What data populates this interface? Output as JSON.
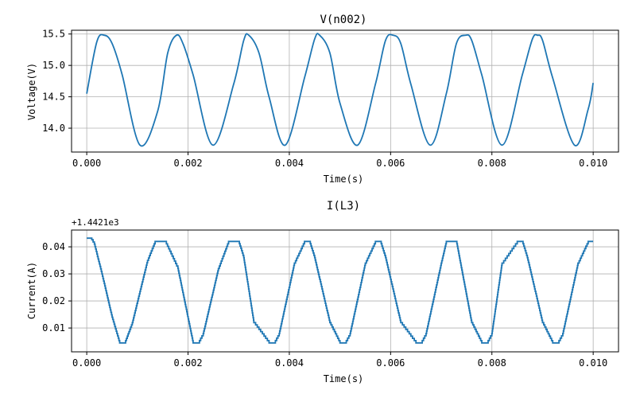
{
  "chart_data": [
    {
      "type": "line",
      "title": "V(n002)",
      "xlabel": "Time(s)",
      "ylabel": "Voltage(V)",
      "xlim": [
        -0.0003,
        0.0105
      ],
      "ylim": [
        13.62,
        15.56
      ],
      "x_ticks": [
        0.0,
        0.002,
        0.004,
        0.006,
        0.008,
        0.01
      ],
      "x_tick_labels": [
        "0.000",
        "0.002",
        "0.004",
        "0.006",
        "0.008",
        "0.010"
      ],
      "y_ticks": [
        14.0,
        14.5,
        15.0,
        15.5
      ],
      "y_tick_labels": [
        "14.0",
        "14.5",
        "15.0",
        "15.5"
      ],
      "grid": true,
      "color": "#1f77b4",
      "series": [
        {
          "x": [
            0.0,
            0.0002,
            0.00035,
            0.0005,
            0.0007,
            0.00105,
            0.0014,
            0.0016,
            0.00177,
            0.0019,
            0.0021,
            0.00249,
            0.0029,
            0.0031,
            0.0032,
            0.0034,
            0.0036,
            0.00392,
            0.0043,
            0.0045,
            0.0046,
            0.0048,
            0.005,
            0.00535,
            0.0057,
            0.0059,
            0.00605,
            0.0062,
            0.0064,
            0.00678,
            0.0071,
            0.0073,
            0.00748,
            0.0076,
            0.0078,
            0.0082,
            0.0086,
            0.0088,
            0.0089,
            0.009,
            0.0092,
            0.00963,
            0.0099,
            0.01
          ],
          "y": [
            14.55,
            15.38,
            15.48,
            15.35,
            14.85,
            13.73,
            14.27,
            15.2,
            15.48,
            15.35,
            14.85,
            13.73,
            14.7,
            15.4,
            15.48,
            15.2,
            14.5,
            13.73,
            14.8,
            15.42,
            15.48,
            15.2,
            14.4,
            13.73,
            14.7,
            15.4,
            15.48,
            15.35,
            14.7,
            13.73,
            14.55,
            15.35,
            15.48,
            15.4,
            14.85,
            13.73,
            14.85,
            15.42,
            15.48,
            15.4,
            14.8,
            13.73,
            14.3,
            14.72
          ]
        }
      ]
    },
    {
      "type": "line",
      "title": "I(L3)",
      "xlabel": "Time(s)",
      "ylabel": "Current(A)",
      "offset_text": "+1.4421e3",
      "xlim": [
        -0.0003,
        0.0105
      ],
      "ylim": [
        0.0012,
        0.0462
      ],
      "x_ticks": [
        0.0,
        0.002,
        0.004,
        0.006,
        0.008,
        0.01
      ],
      "x_tick_labels": [
        "0.000",
        "0.002",
        "0.004",
        "0.006",
        "0.008",
        "0.010"
      ],
      "y_ticks": [
        0.01,
        0.02,
        0.03,
        0.04
      ],
      "y_tick_labels": [
        "0.01",
        "0.02",
        "0.03",
        "0.04"
      ],
      "grid": true,
      "color": "#1f77b4",
      "series": [
        {
          "x": [
            0.0,
            0.0001,
            0.00015,
            0.0003,
            0.0005,
            0.00065,
            0.00075,
            0.0009,
            0.0012,
            0.00135,
            0.00155,
            0.0018,
            0.0021,
            0.0022,
            0.0023,
            0.0026,
            0.0028,
            0.003,
            0.0031,
            0.0033,
            0.0036,
            0.0037,
            0.0038,
            0.0041,
            0.0043,
            0.0044,
            0.0045,
            0.0048,
            0.005,
            0.0051,
            0.0052,
            0.0055,
            0.0057,
            0.0058,
            0.0059,
            0.0062,
            0.0065,
            0.0066,
            0.0067,
            0.007,
            0.0071,
            0.0073,
            0.0076,
            0.0078,
            0.0079,
            0.008,
            0.0082,
            0.0085,
            0.0086,
            0.0087,
            0.009,
            0.0092,
            0.0093,
            0.0094,
            0.0097,
            0.0099,
            0.01
          ],
          "y": [
            0.0432,
            0.0426,
            0.041,
            0.03,
            0.014,
            0.0045,
            0.0045,
            0.012,
            0.035,
            0.042,
            0.042,
            0.032,
            0.0045,
            0.0045,
            0.008,
            0.032,
            0.042,
            0.042,
            0.036,
            0.012,
            0.0045,
            0.0045,
            0.008,
            0.034,
            0.042,
            0.042,
            0.036,
            0.012,
            0.0045,
            0.0045,
            0.008,
            0.034,
            0.042,
            0.042,
            0.036,
            0.012,
            0.0045,
            0.0045,
            0.008,
            0.034,
            0.042,
            0.042,
            0.012,
            0.0045,
            0.0045,
            0.008,
            0.034,
            0.042,
            0.042,
            0.036,
            0.012,
            0.0045,
            0.0045,
            0.008,
            0.034,
            0.042,
            0.042
          ]
        }
      ]
    }
  ]
}
